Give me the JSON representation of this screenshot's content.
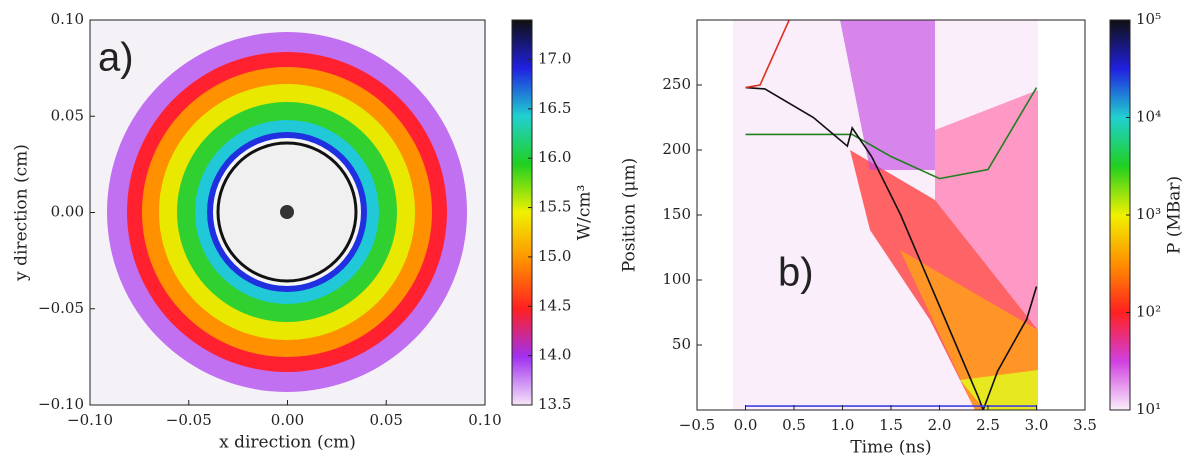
{
  "chart_data": [
    {
      "type": "heatmap",
      "panel_label": "a)",
      "xlabel": "x direction (cm)",
      "ylabel": "y direction (cm)",
      "xlim": [
        -0.1,
        0.1
      ],
      "ylim": [
        -0.1,
        0.1
      ],
      "xticks": [
        {
          "value": -0.1,
          "label": "−0.10"
        },
        {
          "value": -0.05,
          "label": "−0.05"
        },
        {
          "value": 0,
          "label": "0.00"
        },
        0.05,
        {
          "value": 0.1,
          "label": "0.10"
        }
      ],
      "yticks": [
        {
          "value": -0.1,
          "label": "−0.10"
        },
        {
          "value": -0.05,
          "label": "−0.05"
        },
        {
          "value": 0,
          "label": "0.00"
        },
        0.05,
        {
          "value": 0.1,
          "label": "0.10"
        }
      ],
      "colorbar": {
        "label": "W/cm³",
        "clim": [
          13.5,
          17.4
        ],
        "log": false,
        "ticks": [
          13.5,
          {
            "value": 14,
            "label": "14.0"
          },
          14.5,
          {
            "value": 15,
            "label": "15.0"
          },
          15.5,
          {
            "value": 16,
            "label": "16.0"
          },
          16.5,
          {
            "value": 17,
            "label": "17.0"
          }
        ],
        "colors": [
          "#f6e6f8",
          "#a030f0",
          "#ff2020",
          "#ff9000",
          "#f0f000",
          "#20d020",
          "#20d0d0",
          "#2020e0",
          "#101010"
        ]
      }
    },
    {
      "type": "line",
      "panel_label": "b)",
      "xlabel": "Time (ns)",
      "ylabel": "Position (μm)",
      "xlim": [
        -0.5,
        3.5
      ],
      "ylim": [
        0,
        300
      ],
      "xticks": [
        {
          "value": -0.5,
          "label": "−0.5"
        },
        {
          "value": 0,
          "label": "0.0"
        },
        0.5,
        {
          "value": 1,
          "label": "1.0"
        },
        1.5,
        {
          "value": 2,
          "label": "2.0"
        },
        2.5,
        {
          "value": 3,
          "label": "3.0"
        },
        3.5
      ],
      "yticks": [
        50,
        100,
        150,
        200,
        250
      ],
      "series": [
        {
          "color": "#208020",
          "x": [
            0,
            1.1,
            1.5,
            2.0,
            2.5,
            3.0
          ],
          "values": [
            212,
            212,
            195,
            178,
            185,
            248
          ]
        },
        {
          "color": "#101010",
          "x": [
            0,
            0.2,
            0.7,
            1.05,
            1.1,
            1.3,
            1.6,
            2.0,
            2.4,
            2.45,
            2.6,
            2.9,
            3.0
          ],
          "values": [
            248,
            247,
            225,
            203,
            217,
            195,
            150,
            80,
            10,
            0,
            30,
            70,
            95
          ]
        },
        {
          "color": "#e03020",
          "x": [
            0,
            0.15,
            0.3,
            0.45
          ],
          "values": [
            248,
            250,
            275,
            300
          ]
        },
        {
          "color": "#4040e0",
          "x": [
            0,
            3.0
          ],
          "values": [
            3,
            3
          ]
        }
      ],
      "colorbar": {
        "label": "P (MBar)",
        "clim": [
          10,
          100000
        ],
        "log": true,
        "ticks": [
          {
            "value": 10,
            "label": "10¹"
          },
          {
            "value": 100,
            "label": "10²"
          },
          {
            "value": 1000,
            "label": "10³"
          },
          {
            "value": 10000,
            "label": "10⁴"
          },
          {
            "value": 100000,
            "label": "10⁵"
          }
        ],
        "colors": [
          "#fbeefb",
          "#d040e0",
          "#ff2020",
          "#ff9000",
          "#f0f000",
          "#20d020",
          "#20d0d0",
          "#2020e0",
          "#101010"
        ]
      }
    }
  ]
}
